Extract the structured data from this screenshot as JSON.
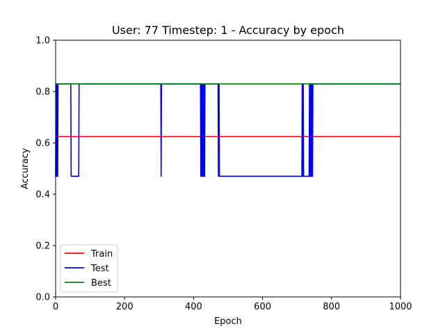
{
  "chart_data": {
    "type": "line",
    "title": "User: 77 Timestep: 1 - Accuracy by epoch",
    "xlabel": "Epoch",
    "ylabel": "Accuracy",
    "xlim": [
      0,
      1000
    ],
    "ylim": [
      0.0,
      1.0
    ],
    "xticks": [
      0,
      200,
      400,
      600,
      800,
      1000
    ],
    "xtick_labels": [
      "0",
      "200",
      "400",
      "600",
      "800",
      "1000"
    ],
    "yticks": [
      0.0,
      0.2,
      0.4,
      0.6,
      0.8,
      1.0
    ],
    "ytick_labels": [
      "0.0",
      "0.2",
      "0.4",
      "0.6",
      "0.8",
      "1.0"
    ],
    "grid": false,
    "legend_position": "lower-left",
    "series": [
      {
        "name": "Train",
        "color": "#ff0000",
        "x": [
          0,
          1000
        ],
        "y": [
          0.625,
          0.625
        ]
      },
      {
        "name": "Test",
        "color": "#0000ff",
        "x": [
          0,
          1,
          2,
          3,
          4,
          5,
          6,
          7,
          8,
          9,
          44,
          45,
          46,
          47,
          66,
          67,
          68,
          69,
          305,
          306,
          307,
          308,
          309,
          310,
          420,
          421,
          422,
          423,
          424,
          425,
          426,
          427,
          428,
          429,
          430,
          431,
          432,
          433,
          434,
          435,
          470,
          471,
          472,
          473,
          474,
          475,
          476,
          477,
          714,
          715,
          716,
          717,
          718,
          719,
          720,
          721,
          722,
          735,
          736,
          737,
          738,
          739,
          740,
          741,
          742,
          743,
          744,
          745,
          746,
          747,
          748,
          749,
          750,
          751,
          752,
          1000
        ],
        "y": [
          0.47,
          0.83,
          0.47,
          0.83,
          0.47,
          0.83,
          0.47,
          0.83,
          0.83,
          0.83,
          0.83,
          0.47,
          0.47,
          0.47,
          0.47,
          0.47,
          0.83,
          0.83,
          0.83,
          0.47,
          0.83,
          0.83,
          0.83,
          0.83,
          0.83,
          0.47,
          0.83,
          0.83,
          0.47,
          0.83,
          0.47,
          0.83,
          0.47,
          0.83,
          0.47,
          0.83,
          0.47,
          0.83,
          0.83,
          0.83,
          0.83,
          0.83,
          0.47,
          0.83,
          0.83,
          0.47,
          0.47,
          0.47,
          0.47,
          0.83,
          0.47,
          0.83,
          0.83,
          0.47,
          0.47,
          0.47,
          0.47,
          0.47,
          0.83,
          0.47,
          0.83,
          0.47,
          0.83,
          0.47,
          0.83,
          0.47,
          0.83,
          0.47,
          0.83,
          0.83,
          0.83,
          0.83,
          0.83,
          0.83,
          0.83,
          0.83
        ]
      },
      {
        "name": "Best",
        "color": "#008000",
        "x": [
          0,
          1000
        ],
        "y": [
          0.83,
          0.83
        ]
      }
    ]
  }
}
